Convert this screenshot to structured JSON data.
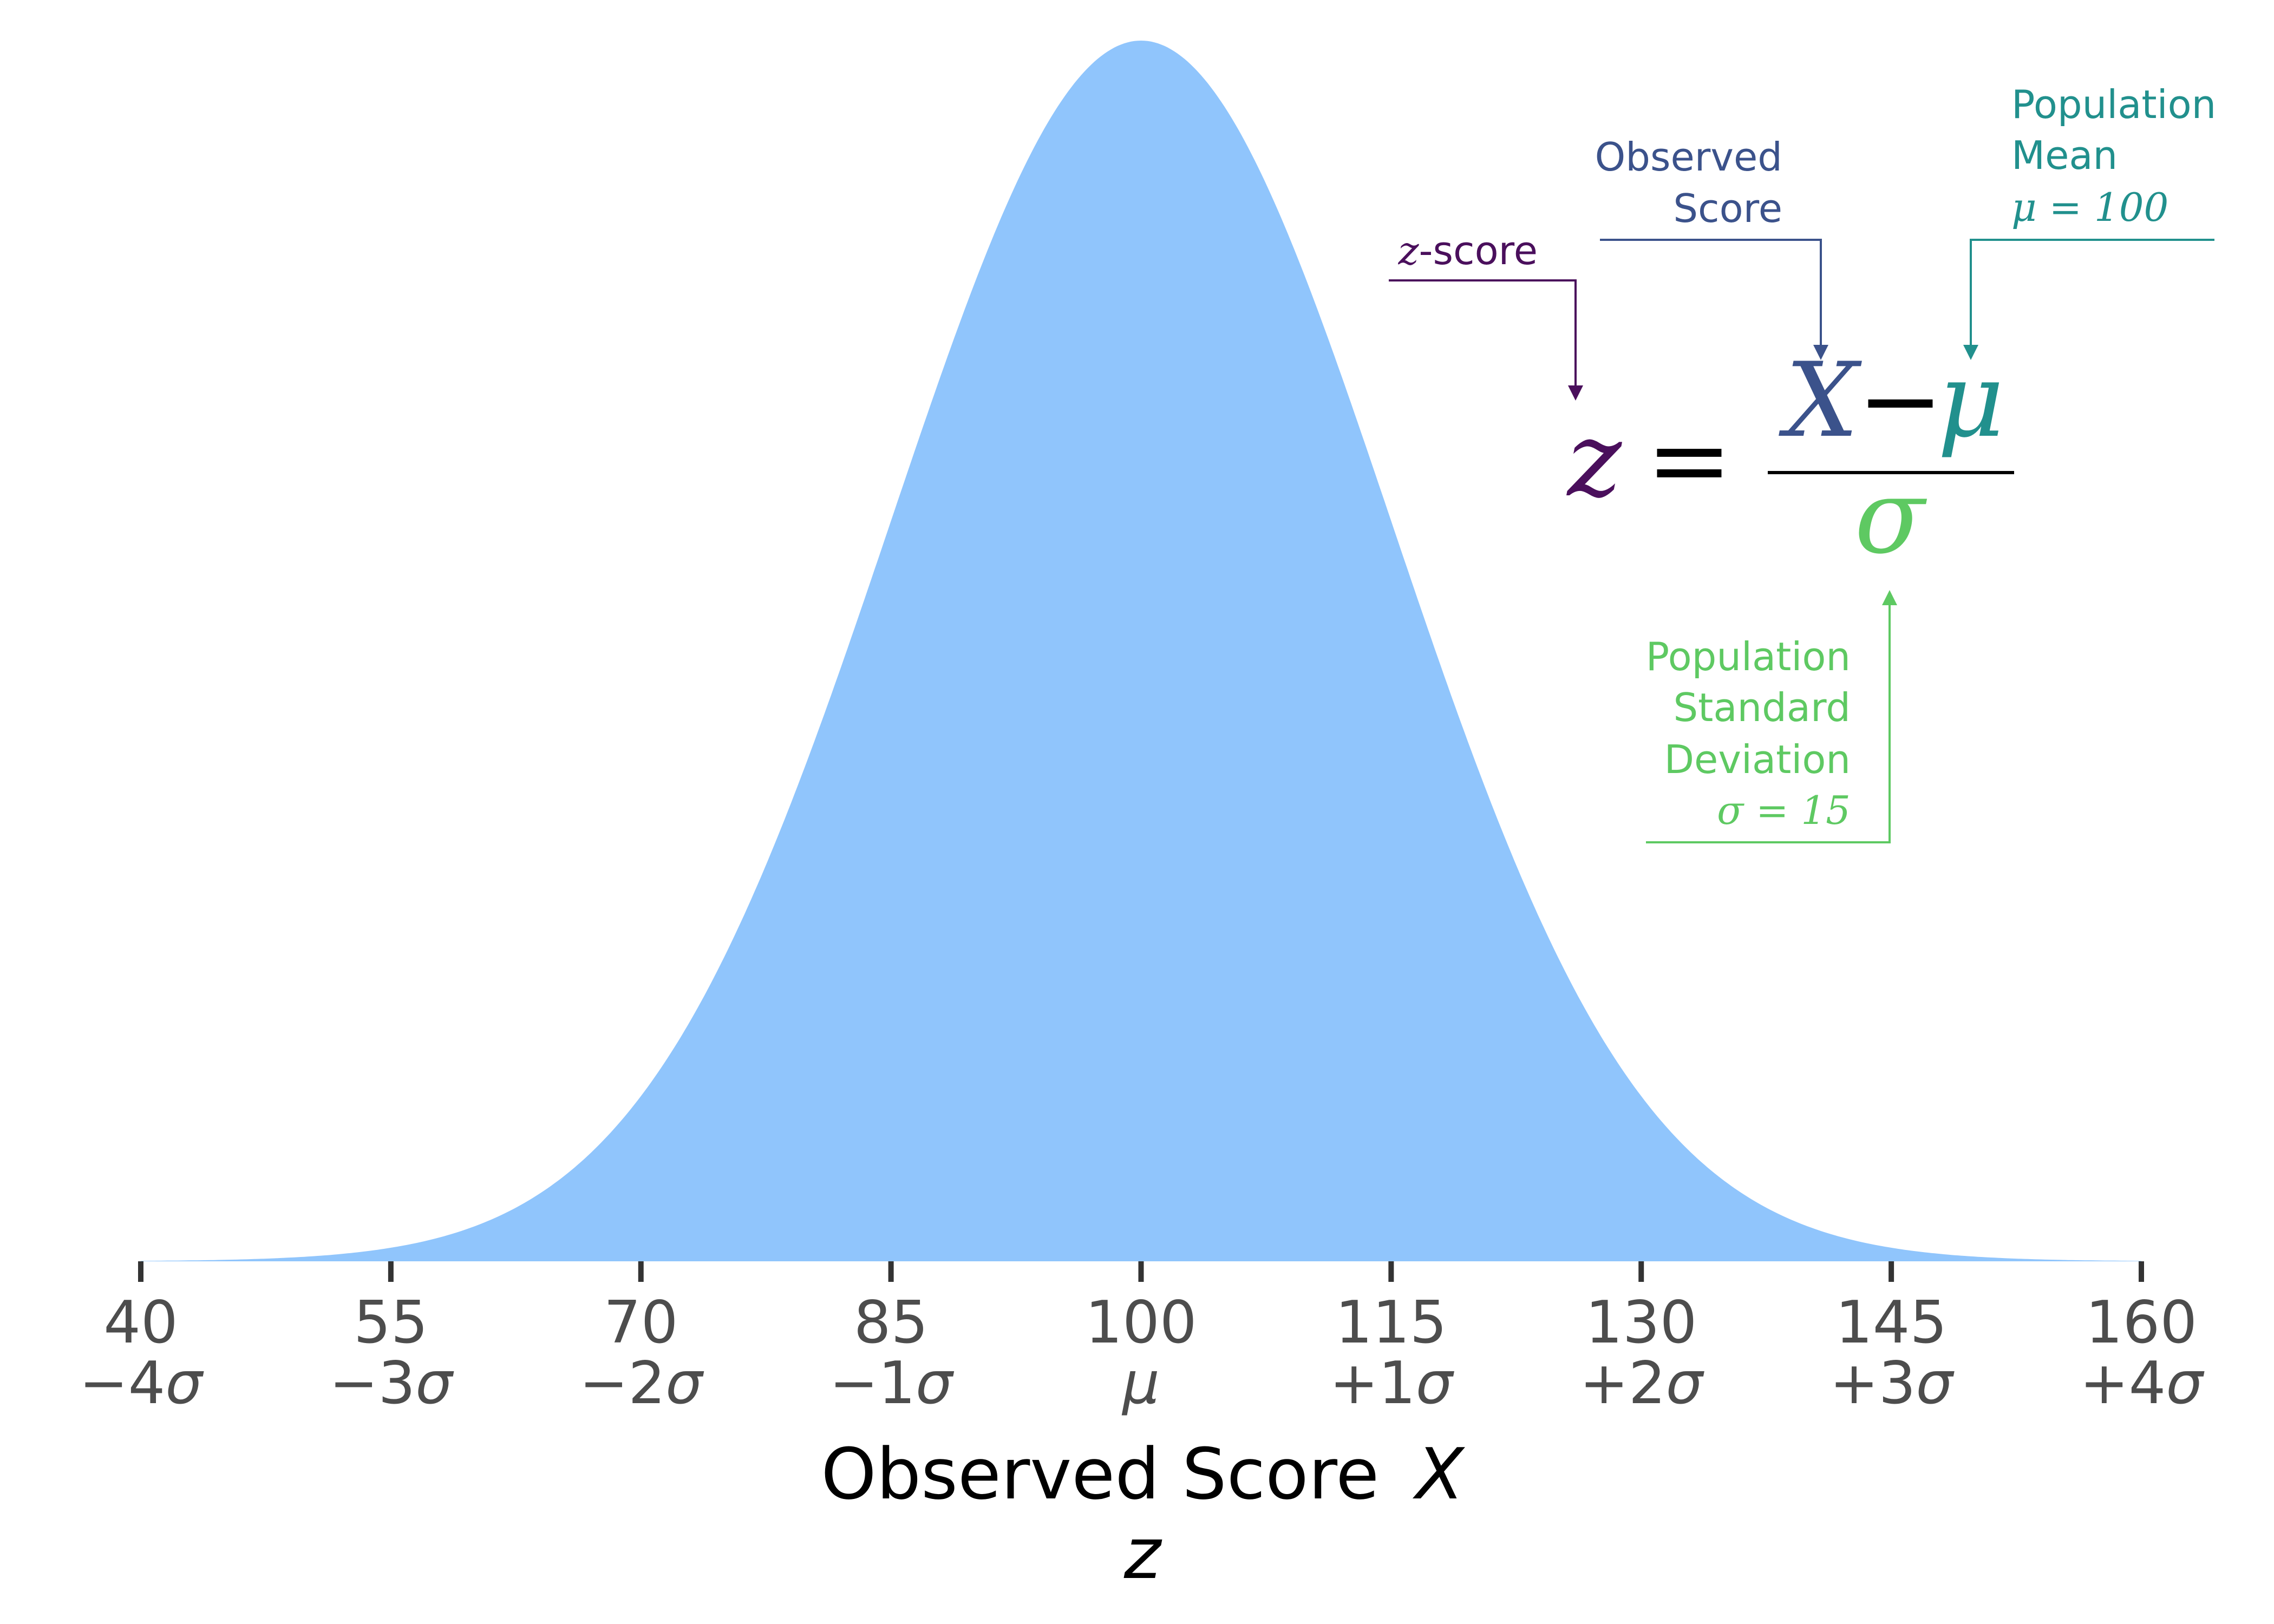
{
  "chart_data": {
    "type": "area",
    "distribution": "normal",
    "mean": 100,
    "sd": 15,
    "xlim": [
      40,
      160
    ],
    "fill_color": "#90c5fc",
    "x_ticks": [
      {
        "value": "40",
        "sigma": "−4σ"
      },
      {
        "value": "55",
        "sigma": "−3σ"
      },
      {
        "value": "70",
        "sigma": "−2σ"
      },
      {
        "value": "85",
        "sigma": "−1σ"
      },
      {
        "value": "100",
        "sigma": "μ"
      },
      {
        "value": "115",
        "sigma": "+1σ"
      },
      {
        "value": "130",
        "sigma": "+2σ"
      },
      {
        "value": "145",
        "sigma": "+3σ"
      },
      {
        "value": "160",
        "sigma": "+4σ"
      }
    ],
    "xlabel": "Observed Score",
    "xlabel_var": "X",
    "xlabel_sub": "z",
    "grid": false
  },
  "formula": {
    "lhs": "z",
    "equals": "=",
    "numerator_x": "X",
    "minus": "−",
    "numerator_mu": "μ",
    "denominator": "σ"
  },
  "annotations": {
    "zscore": {
      "math": "z",
      "text": "-score",
      "color": "#4a0f5c"
    },
    "observed": {
      "line1": "Observed",
      "line2": "Score",
      "color": "#3b528b"
    },
    "mean": {
      "line1": "Population",
      "line2": "Mean",
      "math": "μ = 100",
      "color": "#21908d"
    },
    "sd": {
      "line1": "Population",
      "line2": "Standard",
      "line3": "Deviation",
      "math": "σ = 15",
      "color": "#5ec962"
    }
  },
  "colors": {
    "axis": "#333333",
    "tick_text": "#4d4d4d"
  }
}
